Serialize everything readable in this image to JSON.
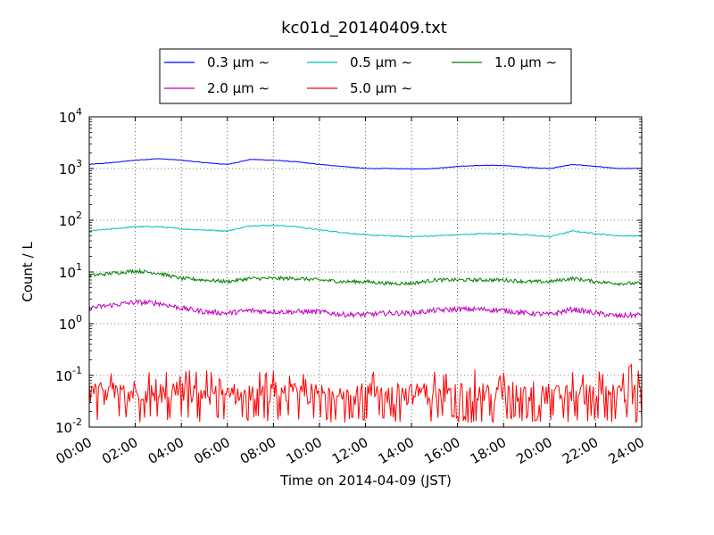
{
  "chart_data": {
    "type": "line",
    "title": "kc01d_20140409.txt",
    "xlabel": "Time on 2014-04-09 (JST)",
    "ylabel": "Count / L",
    "yscale": "log",
    "ylim": [
      0.01,
      10000
    ],
    "xlim": [
      "00:00",
      "24:00"
    ],
    "grid": true,
    "legend_placement": "top-center, outside plot",
    "x_ticks": [
      "00:00",
      "02:00",
      "04:00",
      "06:00",
      "08:00",
      "10:00",
      "12:00",
      "14:00",
      "16:00",
      "18:00",
      "20:00",
      "22:00",
      "24:00"
    ],
    "y_ticks": [
      {
        "base": "10",
        "exp": "-2",
        "value": 0.01
      },
      {
        "base": "10",
        "exp": "-1",
        "value": 0.1
      },
      {
        "base": "10",
        "exp": "0",
        "value": 1
      },
      {
        "base": "10",
        "exp": "1",
        "value": 10
      },
      {
        "base": "10",
        "exp": "2",
        "value": 100
      },
      {
        "base": "10",
        "exp": "3",
        "value": 1000
      },
      {
        "base": "10",
        "exp": "4",
        "value": 10000
      }
    ],
    "series": [
      {
        "name": "0.3 μm ∼",
        "color": "#0000ff",
        "x": [
          "00:00",
          "01:00",
          "02:00",
          "03:00",
          "04:00",
          "05:00",
          "06:00",
          "07:00",
          "08:00",
          "09:00",
          "10:00",
          "11:00",
          "12:00",
          "13:00",
          "14:00",
          "15:00",
          "16:00",
          "17:00",
          "18:00",
          "19:00",
          "20:00",
          "21:00",
          "22:00",
          "23:00",
          "24:00"
        ],
        "y": [
          1200,
          1300,
          1450,
          1550,
          1450,
          1300,
          1200,
          1500,
          1450,
          1350,
          1200,
          1100,
          1000,
          1000,
          980,
          1000,
          1100,
          1150,
          1150,
          1050,
          1000,
          1200,
          1100,
          1000,
          1000
        ]
      },
      {
        "name": "0.5 μm ∼",
        "color": "#00bfbf",
        "x": [
          "00:00",
          "01:00",
          "02:00",
          "03:00",
          "04:00",
          "05:00",
          "06:00",
          "07:00",
          "08:00",
          "09:00",
          "10:00",
          "11:00",
          "12:00",
          "13:00",
          "14:00",
          "15:00",
          "16:00",
          "17:00",
          "18:00",
          "19:00",
          "20:00",
          "21:00",
          "22:00",
          "23:00",
          "24:00"
        ],
        "y": [
          62,
          68,
          75,
          75,
          68,
          65,
          62,
          78,
          80,
          75,
          65,
          58,
          52,
          50,
          48,
          50,
          52,
          55,
          55,
          52,
          48,
          62,
          55,
          50,
          50
        ]
      },
      {
        "name": "1.0 μm ∼",
        "color": "#008000",
        "x": [
          "00:00",
          "01:00",
          "02:00",
          "03:00",
          "04:00",
          "05:00",
          "06:00",
          "07:00",
          "08:00",
          "09:00",
          "10:00",
          "11:00",
          "12:00",
          "13:00",
          "14:00",
          "15:00",
          "16:00",
          "17:00",
          "18:00",
          "19:00",
          "20:00",
          "21:00",
          "22:00",
          "23:00",
          "24:00"
        ],
        "y": [
          8.5,
          9.5,
          10.5,
          9.5,
          7.5,
          7,
          6.5,
          7.5,
          7.5,
          7.5,
          7,
          6.5,
          6.5,
          6,
          6,
          7,
          7,
          7,
          7,
          6.5,
          6.5,
          7.5,
          6.5,
          6,
          6
        ]
      },
      {
        "name": "2.0 μm ∼",
        "color": "#bf00bf",
        "x": [
          "00:00",
          "01:00",
          "02:00",
          "03:00",
          "04:00",
          "05:00",
          "06:00",
          "07:00",
          "08:00",
          "09:00",
          "10:00",
          "11:00",
          "12:00",
          "13:00",
          "14:00",
          "15:00",
          "16:00",
          "17:00",
          "18:00",
          "19:00",
          "20:00",
          "21:00",
          "22:00",
          "23:00",
          "24:00"
        ],
        "y": [
          2,
          2.3,
          2.6,
          2.5,
          2,
          1.7,
          1.6,
          1.8,
          1.7,
          1.7,
          1.7,
          1.5,
          1.5,
          1.6,
          1.6,
          1.8,
          1.9,
          1.9,
          1.8,
          1.6,
          1.5,
          1.9,
          1.6,
          1.4,
          1.5
        ]
      },
      {
        "name": "5.0 μm ∼",
        "color": "#ff0000",
        "noisy": true,
        "y_low": 0.012,
        "y_mid": 0.04,
        "y_high": 0.13,
        "peak": {
          "x": "23:30",
          "y": 0.18
        }
      }
    ]
  }
}
